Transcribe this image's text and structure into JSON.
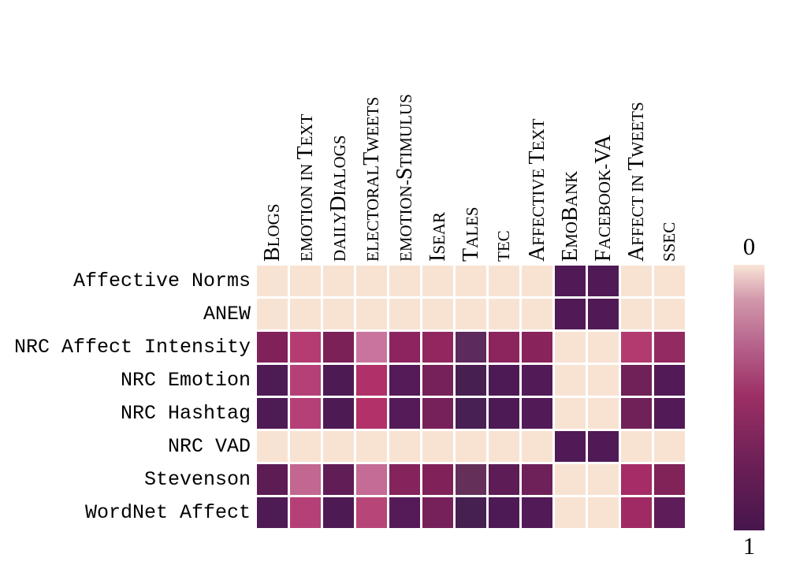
{
  "chart_data": {
    "type": "heatmap",
    "title": "",
    "x_labels": [
      "Blogs",
      "Emotion in Text",
      "DailyDialogs",
      "ElectoralTweets",
      "Emotion-Stimulus",
      "ISEAR",
      "Tales",
      "TEC",
      "Affective Text",
      "EmoBank",
      "Facebook-VA",
      "Affect in Tweets",
      "SSEC"
    ],
    "x_labels_smallcaps_casing": [
      "Blogs",
      "emotion in Text",
      "dailyDialogs",
      "electoralTweets",
      "emotion-Stimulus",
      "Isear",
      "Tales",
      "tec",
      "Affective Text",
      "EmoBank",
      "Facebook-VA",
      "Affect in Tweets",
      "ssec"
    ],
    "y_labels": [
      "Affective Norms",
      "ANEW",
      "NRC Affect Intensity",
      "NRC Emotion",
      "NRC Hashtag",
      "NRC VAD",
      "Stevenson",
      "WordNet Affect"
    ],
    "value_range": [
      0,
      1
    ],
    "grid_on": false,
    "values": [
      [
        0.02,
        0.02,
        0.02,
        0.02,
        0.02,
        0.02,
        0.02,
        0.02,
        0.02,
        0.9,
        0.9,
        0.02,
        0.02
      ],
      [
        0.02,
        0.02,
        0.02,
        0.02,
        0.02,
        0.02,
        0.02,
        0.02,
        0.02,
        0.9,
        0.9,
        0.02,
        0.02
      ],
      [
        0.65,
        0.42,
        0.67,
        0.26,
        0.58,
        0.55,
        0.8,
        0.58,
        0.6,
        0.02,
        0.02,
        0.44,
        0.55
      ],
      [
        0.9,
        0.42,
        0.9,
        0.45,
        0.86,
        0.7,
        0.93,
        0.9,
        0.88,
        0.02,
        0.02,
        0.73,
        0.88
      ],
      [
        0.9,
        0.42,
        0.9,
        0.44,
        0.86,
        0.7,
        0.93,
        0.9,
        0.88,
        0.02,
        0.02,
        0.73,
        0.88
      ],
      [
        0.02,
        0.02,
        0.02,
        0.02,
        0.02,
        0.02,
        0.02,
        0.02,
        0.02,
        0.9,
        0.9,
        0.02,
        0.02
      ],
      [
        0.82,
        0.29,
        0.8,
        0.28,
        0.62,
        0.65,
        0.78,
        0.82,
        0.74,
        0.02,
        0.02,
        0.47,
        0.65
      ],
      [
        0.9,
        0.42,
        0.9,
        0.4,
        0.86,
        0.7,
        0.94,
        0.9,
        0.88,
        0.02,
        0.02,
        0.49,
        0.82
      ]
    ],
    "cell_colors": [
      [
        "#f8e3d3",
        "#f8e3d3",
        "#f8e3d3",
        "#f8e3d3",
        "#f8e3d3",
        "#f8e3d3",
        "#f8e3d3",
        "#f8e3d3",
        "#f8e3d3",
        "#4f1a55",
        "#4f1a55",
        "#f8e3d3",
        "#f8e3d3"
      ],
      [
        "#f8e3d3",
        "#f8e3d3",
        "#f8e3d3",
        "#f8e3d3",
        "#f8e3d3",
        "#f8e3d3",
        "#f8e3d3",
        "#f8e3d3",
        "#f8e3d3",
        "#4f1a55",
        "#4f1a55",
        "#f8e3d3",
        "#f8e3d3"
      ],
      [
        "#81215a",
        "#b53c72",
        "#7c2158",
        "#c9749e",
        "#8d2460",
        "#92265f",
        "#5d2a5e",
        "#8c245e",
        "#88235c",
        "#f8e3d3",
        "#f8e3d3",
        "#b23a6f",
        "#932a62"
      ],
      [
        "#4f1b55",
        "#b54077",
        "#4e1a54",
        "#b03169",
        "#541b58",
        "#77215b",
        "#472051",
        "#4e1a56",
        "#521a57",
        "#f8e3d3",
        "#f8e3d3",
        "#6f2158",
        "#521a56"
      ],
      [
        "#4f1b55",
        "#b54077",
        "#4e1a54",
        "#b23168",
        "#541b58",
        "#77215b",
        "#482053",
        "#4e1a56",
        "#521a57",
        "#f8e3d3",
        "#f8e3d3",
        "#6f2158",
        "#521a56"
      ],
      [
        "#f8e3d3",
        "#f8e3d3",
        "#f8e3d3",
        "#f8e3d3",
        "#f8e3d3",
        "#f8e3d3",
        "#f8e3d3",
        "#f8e3d3",
        "#f8e3d3",
        "#4f1a55",
        "#4f1a55",
        "#f8e3d3",
        "#f8e3d3"
      ],
      [
        "#5e1c55",
        "#c16790",
        "#611d56",
        "#c46b96",
        "#85235c",
        "#80215a",
        "#643059",
        "#5d1c55",
        "#6d2158",
        "#f8e3d3",
        "#f8e3d3",
        "#a62c67",
        "#812259"
      ],
      [
        "#4f1b55",
        "#b54077",
        "#4e1a54",
        "#b84577",
        "#551b58",
        "#77215b",
        "#452050",
        "#4e1a56",
        "#521a57",
        "#f8e3d3",
        "#f8e3d3",
        "#a02b64",
        "#5e1c58"
      ]
    ],
    "colorbar": {
      "top_label": "0",
      "bottom_label": "1",
      "orientation": "vertical",
      "position": "right",
      "gradient_stops": [
        {
          "pos": 0.0,
          "color": "#f9e5d6"
        },
        {
          "pos": 0.13,
          "color": "#d298ab"
        },
        {
          "pos": 0.31,
          "color": "#b5618a"
        },
        {
          "pos": 0.49,
          "color": "#9d3066"
        },
        {
          "pos": 0.74,
          "color": "#6d2056"
        },
        {
          "pos": 1.0,
          "color": "#46164d"
        }
      ]
    },
    "layout": {
      "cell_gap_color": "#ffffff",
      "background_color": "#ffffff"
    }
  }
}
